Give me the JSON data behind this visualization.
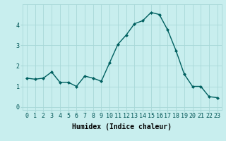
{
  "x": [
    0,
    1,
    2,
    3,
    4,
    5,
    6,
    7,
    8,
    9,
    10,
    11,
    12,
    13,
    14,
    15,
    16,
    17,
    18,
    19,
    20,
    21,
    22,
    23
  ],
  "y": [
    1.4,
    1.35,
    1.4,
    1.7,
    1.2,
    1.2,
    1.0,
    1.5,
    1.4,
    1.25,
    2.15,
    3.05,
    3.5,
    4.05,
    4.2,
    4.6,
    4.5,
    3.75,
    2.75,
    1.6,
    1.0,
    1.0,
    0.5,
    0.45
  ],
  "line_color": "#006060",
  "marker": "D",
  "marker_size": 2.0,
  "bg_color": "#c8eeee",
  "grid_color": "#a8d8d8",
  "xlabel": "Humidex (Indice chaleur)",
  "xlabel_fontsize": 7,
  "tick_fontsize": 6,
  "ylim": [
    -0.15,
    5.0
  ],
  "xlim": [
    -0.5,
    23.5
  ],
  "yticks": [
    0,
    1,
    2,
    3,
    4
  ],
  "xticks": [
    0,
    1,
    2,
    3,
    4,
    5,
    6,
    7,
    8,
    9,
    10,
    11,
    12,
    13,
    14,
    15,
    16,
    17,
    18,
    19,
    20,
    21,
    22,
    23
  ],
  "line_width": 1.0
}
